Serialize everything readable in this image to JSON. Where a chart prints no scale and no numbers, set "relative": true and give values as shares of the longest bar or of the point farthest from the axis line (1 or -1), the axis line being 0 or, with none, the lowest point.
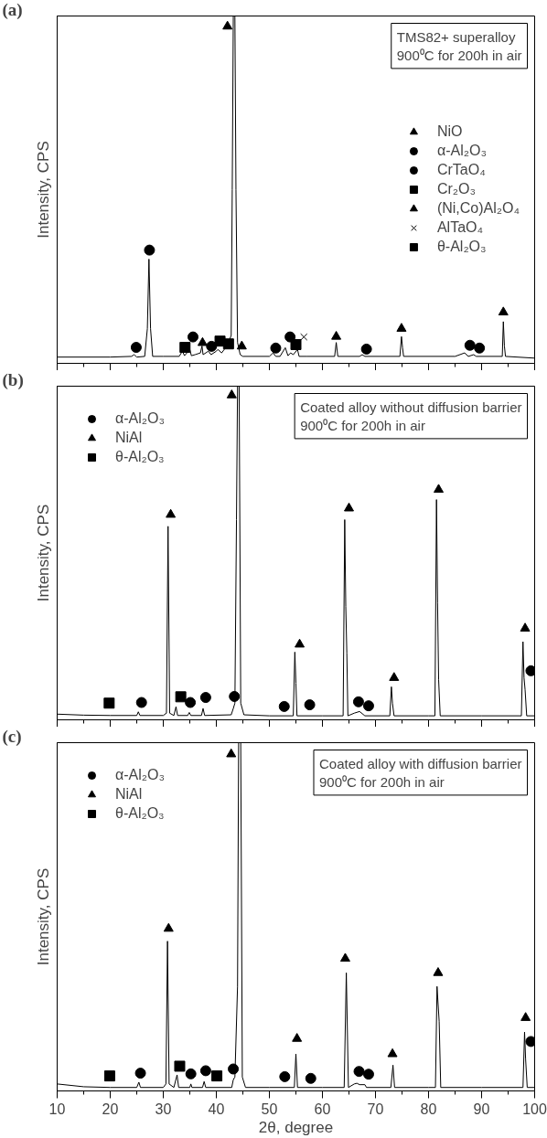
{
  "chart_data": [
    {
      "type": "line",
      "relative": true,
      "ylabel": "Intensity, CPS",
      "xlim": [
        10,
        100
      ],
      "xticks": [
        10,
        20,
        30,
        40,
        50,
        60,
        70,
        80,
        90,
        100
      ],
      "tick_labels": false,
      "grid": false,
      "legend": "right",
      "annotations": [
        "(a)",
        "TMS82+ superalloy\n900⁰C for 200h in air"
      ],
      "series": [
        {
          "color": "#000000",
          "x": [
            10,
            20,
            24,
            24.5,
            25,
            26.5,
            27,
            27.3,
            27.6,
            28,
            30,
            33,
            33.6,
            34,
            35,
            35.3,
            36,
            37,
            37.3,
            37.5,
            38.5,
            39,
            40,
            40.3,
            41,
            41.5,
            42,
            42.8,
            43.0,
            43.2,
            43.5,
            43.7,
            44,
            44.5,
            45,
            50,
            50.7,
            51.2,
            52,
            53,
            53.5,
            54,
            54.5,
            55.3,
            55.6,
            57,
            62.3,
            62.6,
            62.9,
            67,
            67.5,
            68,
            74.6,
            74.9,
            75.1,
            75.3,
            85,
            86.8,
            87.5,
            88.5,
            89,
            93.9,
            94.1,
            94.3,
            94.5,
            100
          ],
          "values": [
            0.018,
            0.018,
            0.02,
            0.025,
            0.018,
            0.02,
            0.1,
            0.3,
            0.1,
            0.02,
            0.02,
            0.02,
            0.035,
            0.022,
            0.04,
            0.022,
            0.025,
            0.03,
            0.05,
            0.025,
            0.035,
            0.025,
            0.035,
            0.04,
            0.03,
            0.04,
            0.05,
            0.08,
            0.5,
            1.0,
            1.0,
            0.5,
            0.06,
            0.025,
            0.02,
            0.02,
            0.03,
            0.02,
            0.02,
            0.045,
            0.022,
            0.03,
            0.025,
            0.04,
            0.02,
            0.02,
            0.02,
            0.06,
            0.02,
            0.02,
            0.025,
            0.02,
            0.02,
            0.077,
            0.045,
            0.02,
            0.02,
            0.03,
            0.02,
            0.025,
            0.02,
            0.02,
            0.12,
            0.05,
            0.02,
            0.015
          ]
        },
        {
          "type": "scatter",
          "name": "NiO",
          "color": "#000000",
          "marker": "triangle",
          "x": [
            42.1,
            37.4,
            62.6,
            74.9,
            94.1
          ],
          "values": [
            0.97,
            0.059,
            0.077,
            0.1,
            0.147
          ]
        },
        {
          "type": "scatter",
          "name": "α-Al₂O₃",
          "color": "#000000",
          "marker": "circle",
          "x": [
            24.9,
            51.2
          ],
          "values": [
            0.046,
            0.044
          ]
        },
        {
          "type": "scatter",
          "name": "CrTaO₄",
          "color": "#000000",
          "marker": "circle",
          "x": [
            27.4,
            35.6,
            39.1,
            53.9,
            68.3,
            87.8,
            89.6
          ],
          "values": [
            0.326,
            0.076,
            0.049,
            0.076,
            0.041,
            0.052,
            0.044
          ]
        },
        {
          "type": "scatter",
          "name": "Cr₂O₃",
          "color": "#000000",
          "marker": "square",
          "x": [
            34.1,
            42.3,
            55.0
          ],
          "values": [
            0.046,
            0.056,
            0.054
          ]
        },
        {
          "type": "scatter",
          "name": "(Ni,Co)Al₂O₄",
          "color": "#000000",
          "marker": "triangle",
          "x": [
            44.8
          ],
          "values": [
            0.049
          ]
        },
        {
          "type": "scatter",
          "name": "AlTaO₄",
          "color": "#000000",
          "marker": "cross",
          "x": [
            56.5
          ],
          "values": [
            0.076
          ]
        },
        {
          "type": "scatter",
          "name": "θ-Al₂O₃",
          "color": "#000000",
          "marker": "square",
          "x": [
            40.7
          ],
          "values": [
            0.064
          ]
        }
      ]
    },
    {
      "type": "line",
      "relative": true,
      "ylabel": "Intensity, CPS",
      "xlim": [
        10,
        100
      ],
      "xticks": [
        10,
        20,
        30,
        40,
        50,
        60,
        70,
        80,
        90,
        100
      ],
      "tick_labels": false,
      "grid": false,
      "legend": "top left",
      "annotations": [
        "(b)",
        "Coated alloy without diffusion barrier\n900⁰C for 200h in air"
      ],
      "series": [
        {
          "color": "#000000",
          "x": [
            10,
            15,
            20,
            25,
            25.3,
            25.6,
            30,
            30.6,
            30.9,
            31.2,
            32,
            32.4,
            32.7,
            34.6,
            34.9,
            35.2,
            37.2,
            37.5,
            37.8,
            42.8,
            43.2,
            43.5,
            43.8,
            44.0,
            44.3,
            44.6,
            45.2,
            50,
            54.5,
            54.8,
            55.0,
            55.2,
            60,
            63.9,
            64.2,
            64.4,
            64.6,
            64.8,
            66,
            67,
            68,
            72.7,
            73.0,
            73.2,
            73.5,
            80,
            81.2,
            81.5,
            81.7,
            81.9,
            82.2,
            90,
            97.5,
            97.8,
            98.0,
            98.2,
            98.5,
            100
          ],
          "values": [
            0.017,
            0.014,
            0.013,
            0.013,
            0.024,
            0.013,
            0.013,
            0.02,
            0.58,
            0.02,
            0.013,
            0.039,
            0.013,
            0.013,
            0.022,
            0.013,
            0.013,
            0.034,
            0.013,
            0.015,
            0.034,
            0.05,
            0.6,
            1.0,
            1.0,
            0.05,
            0.015,
            0.012,
            0.012,
            0.203,
            0.11,
            0.012,
            0.012,
            0.012,
            0.6,
            0.34,
            0.2,
            0.012,
            0.02,
            0.025,
            0.012,
            0.012,
            0.099,
            0.05,
            0.012,
            0.012,
            0.012,
            0.66,
            0.35,
            0.12,
            0.012,
            0.012,
            0.012,
            0.234,
            0.126,
            0.09,
            0.012,
            0.012
          ]
        },
        {
          "type": "scatter",
          "name": "α-Al₂O₃",
          "color": "#000000",
          "marker": "circle",
          "x": [
            25.9,
            35.1,
            38.0,
            43.4,
            52.8,
            57.6,
            66.8,
            68.7,
            99.3
          ],
          "values": [
            0.052,
            0.052,
            0.067,
            0.07,
            0.04,
            0.045,
            0.054,
            0.042,
            0.147
          ]
        },
        {
          "type": "scatter",
          "name": "NiAl",
          "color": "#000000",
          "marker": "triangle",
          "x": [
            42.9,
            31.4,
            55.7,
            65.0,
            73.5,
            81.9,
            98.2
          ],
          "values": [
            0.973,
            0.615,
            0.226,
            0.634,
            0.126,
            0.69,
            0.274
          ]
        },
        {
          "type": "scatter",
          "name": "θ-Al₂O₃",
          "color": "#000000",
          "marker": "square",
          "x": [
            19.8,
            33.3
          ],
          "values": [
            0.05,
            0.069
          ]
        }
      ]
    },
    {
      "type": "line",
      "relative": true,
      "ylabel": "Intensity, CPS",
      "xlabel": "2θ, degree",
      "xlim": [
        10,
        100
      ],
      "xticks": [
        10,
        20,
        30,
        40,
        50,
        60,
        70,
        80,
        90,
        100
      ],
      "tick_labels": "x",
      "grid": false,
      "legend": "top left",
      "annotations": [
        "(c)",
        "Coated alloy with diffusion barrier\n900⁰C for 200h in air"
      ],
      "series": [
        {
          "color": "#000000",
          "x": [
            10,
            15,
            20,
            25,
            25.4,
            25.7,
            30,
            30.5,
            30.8,
            31.1,
            32,
            32.6,
            32.9,
            35,
            35.2,
            35.4,
            37.4,
            37.7,
            38,
            42.9,
            43.2,
            43.5,
            44.0,
            44.2,
            44.6,
            44.9,
            45.5,
            50,
            54.7,
            55.0,
            55.3,
            60,
            64.1,
            64.5,
            64.9,
            66,
            66.5,
            67,
            68,
            68.3,
            72.9,
            73.3,
            73.6,
            80,
            81.3,
            81.6,
            82.0,
            82.3,
            90,
            97.8,
            98.1,
            98.3,
            98.6,
            100
          ],
          "values": [
            0.02,
            0.012,
            0.01,
            0.01,
            0.025,
            0.01,
            0.01,
            0.02,
            0.43,
            0.02,
            0.01,
            0.046,
            0.01,
            0.01,
            0.02,
            0.01,
            0.01,
            0.027,
            0.01,
            0.01,
            0.032,
            0.04,
            0.3,
            1.0,
            1.0,
            0.04,
            0.01,
            0.01,
            0.01,
            0.106,
            0.01,
            0.01,
            0.01,
            0.339,
            0.01,
            0.02,
            0.022,
            0.018,
            0.018,
            0.01,
            0.01,
            0.074,
            0.01,
            0.01,
            0.01,
            0.3,
            0.2,
            0.01,
            0.01,
            0.01,
            0.169,
            0.091,
            0.01,
            0.01
          ]
        },
        {
          "type": "scatter",
          "name": "α-Al₂O₃",
          "color": "#000000",
          "marker": "circle",
          "x": [
            25.7,
            35.2,
            38.0,
            43.2,
            52.9,
            57.8,
            66.9,
            68.7,
            99.3
          ],
          "values": [
            0.051,
            0.049,
            0.058,
            0.063,
            0.041,
            0.036,
            0.056,
            0.048,
            0.142
          ]
        },
        {
          "type": "scatter",
          "name": "NiAl",
          "color": "#000000",
          "marker": "triangle",
          "x": [
            42.8,
            31.0,
            55.2,
            64.3,
            73.2,
            81.8,
            98.3
          ],
          "values": [
            0.967,
            0.466,
            0.15,
            0.38,
            0.106,
            0.339,
            0.21
          ]
        },
        {
          "type": "scatter",
          "name": "θ-Al₂O₃",
          "color": "#000000",
          "marker": "square",
          "x": [
            19.9,
            33.1,
            40.1
          ],
          "values": [
            0.043,
            0.071,
            0.043
          ]
        }
      ]
    }
  ]
}
